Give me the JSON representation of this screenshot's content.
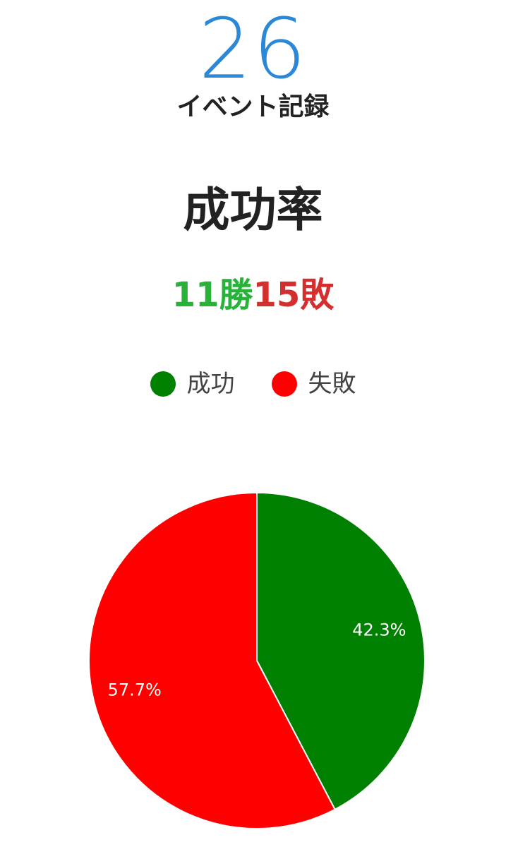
{
  "summary": {
    "count": "26",
    "count_label": "イベント記録"
  },
  "title": "成功率",
  "record": {
    "wins_text": "11勝",
    "losses_text": "15敗"
  },
  "legend": [
    {
      "label": "成功",
      "color": "#008000"
    },
    {
      "label": "失敗",
      "color": "#FF0000"
    }
  ],
  "chart_data": {
    "type": "pie",
    "title": "",
    "legend_position": "top",
    "slices": [
      {
        "label": "成功",
        "value": 11,
        "percent_label": "42.3%",
        "color": "#008000"
      },
      {
        "label": "失敗",
        "value": 15,
        "percent_label": "57.7%",
        "color": "#FF0000"
      }
    ]
  }
}
